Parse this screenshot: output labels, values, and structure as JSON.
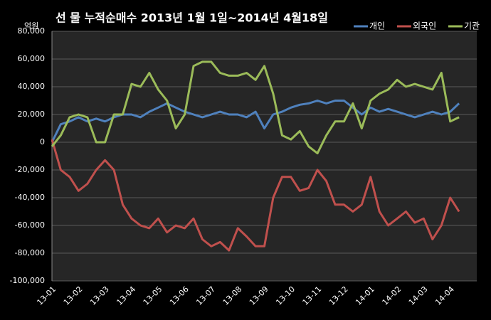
{
  "chart_data": {
    "type": "line",
    "title": "선 물  누적순매수 2013년 1월 1일~2014년 4월18일",
    "y_unit": "억원",
    "categories": [
      "13-01",
      null,
      null,
      "13-02",
      null,
      null,
      "13-03",
      null,
      null,
      "13-04",
      null,
      null,
      "13-05",
      null,
      null,
      "13-06",
      null,
      null,
      "13-07",
      null,
      null,
      "13-08",
      null,
      null,
      "13-09",
      null,
      null,
      "13-10",
      null,
      null,
      "13-11",
      null,
      null,
      "13-12",
      null,
      null,
      "14-01",
      null,
      null,
      "14-02",
      null,
      null,
      "14-03",
      null,
      null,
      "14-04",
      null
    ],
    "series": [
      {
        "name": "개인",
        "color": "#4f81bd",
        "values": [
          0,
          13000,
          15000,
          18000,
          15000,
          17000,
          15000,
          18000,
          20000,
          20000,
          18000,
          22000,
          25000,
          28000,
          25000,
          22000,
          20000,
          18000,
          20000,
          22000,
          20000,
          20000,
          18000,
          22000,
          10000,
          20000,
          22000,
          25000,
          27000,
          28000,
          30000,
          28000,
          30000,
          30000,
          25000,
          20000,
          25000,
          22000,
          24000,
          22000,
          20000,
          18000,
          20000,
          22000,
          20000,
          22000,
          28000
        ]
      },
      {
        "name": "외국인",
        "color": "#c0504d",
        "values": [
          2000,
          -20000,
          -25000,
          -35000,
          -30000,
          -20000,
          -13000,
          -20000,
          -45000,
          -55000,
          -60000,
          -62000,
          -55000,
          -65000,
          -60000,
          -62000,
          -55000,
          -70000,
          -75000,
          -72000,
          -78000,
          -62000,
          -68000,
          -75000,
          -75000,
          -40000,
          -25000,
          -25000,
          -35000,
          -33000,
          -20000,
          -28000,
          -45000,
          -45000,
          -50000,
          -45000,
          -25000,
          -50000,
          -60000,
          -55000,
          -50000,
          -58000,
          -55000,
          -70000,
          -60000,
          -40000,
          -50000
        ]
      },
      {
        "name": "기관",
        "color": "#9bbb59",
        "values": [
          -3000,
          5000,
          18000,
          20000,
          18000,
          0,
          0,
          20000,
          20000,
          42000,
          40000,
          50000,
          38000,
          30000,
          10000,
          20000,
          55000,
          58000,
          58000,
          50000,
          48000,
          48000,
          50000,
          45000,
          55000,
          35000,
          5000,
          2000,
          8000,
          -3000,
          -8000,
          5000,
          15000,
          15000,
          28000,
          10000,
          30000,
          35000,
          38000,
          45000,
          40000,
          42000,
          40000,
          38000,
          50000,
          15000,
          18000
        ]
      }
    ],
    "ylim": [
      -100000,
      80000
    ],
    "yticks": [
      {
        "value": -100000,
        "label": "-100,000"
      },
      {
        "value": -80000,
        "label": "-80,000"
      },
      {
        "value": -60000,
        "label": "-60,000"
      },
      {
        "value": -40000,
        "label": "-40,000"
      },
      {
        "value": -20000,
        "label": "-20,000"
      },
      0,
      {
        "value": 20000,
        "label": "20,000"
      },
      {
        "value": 40000,
        "label": "40,000"
      },
      {
        "value": 60000,
        "label": "60,000"
      },
      {
        "value": 80000,
        "label": "80,000"
      }
    ],
    "grid": true,
    "legend": "top-right"
  }
}
